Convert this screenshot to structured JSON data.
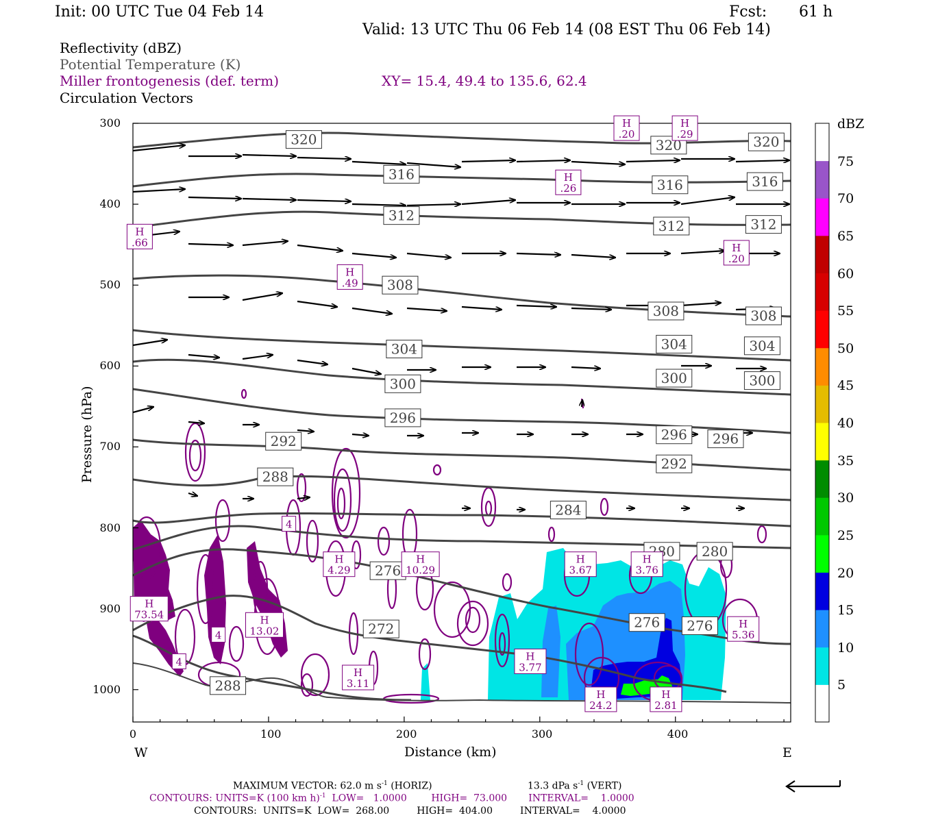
{
  "header": {
    "init": "Init: 00 UTC Tue 04 Feb 14",
    "fcst_label": "Fcst:",
    "fcst_value": "61 h",
    "valid": "Valid: 13 UTC Thu 06 Feb 14 (08 EST Thu 06 Feb 14)"
  },
  "legend": {
    "line1": "Reflectivity (dBZ)",
    "line2": "Potential Temperature (K)",
    "line3": "Miller frontogenesis (def. term)",
    "xy": "XY=  15.4, 49.4 to 135.6, 62.4",
    "line4": "Circulation Vectors"
  },
  "colorbar": {
    "title": "dBZ",
    "labels": [
      "5",
      "10",
      "15",
      "20",
      "25",
      "30",
      "35",
      "40",
      "45",
      "50",
      "55",
      "60",
      "65",
      "70",
      "75"
    ],
    "colors": [
      "#ffffff",
      "#00e5e5",
      "#1e90ff",
      "#0000e0",
      "#00ff00",
      "#00c800",
      "#008c00",
      "#ffff00",
      "#e5bc00",
      "#ff8c00",
      "#ff0000",
      "#d70000",
      "#c00000",
      "#ff00ff",
      "#9955c9",
      "#ffffff"
    ]
  },
  "footer": {
    "l1a": "MAXIMUM VECTOR:  62.0 m s",
    "l1b": "-1",
    "l1c": " (HORIZ)",
    "l1d": "13.3 dPa s",
    "l1e": "-1",
    "l1f": " (VERT)",
    "l2a": "CONTOURS:  UNITS=K (100 km h)",
    "l2b": "-1",
    "l2c": "  LOW=   1.0000        HIGH=  73.000       INTERVAL=    1.0000",
    "l3": "CONTOURS:  UNITS=K  LOW=  268.00         HIGH=  404.00         INTERVAL=    4.0000"
  },
  "chart_data": {
    "type": "cross-section",
    "xlabel": "Distance (km)",
    "ylabel": "Pressure (hPa)",
    "x_ticks": [
      0,
      100,
      200,
      300,
      400
    ],
    "y_ticks": [
      300,
      400,
      500,
      600,
      700,
      800,
      900,
      1000
    ],
    "xlim": [
      0,
      485
    ],
    "ylim": [
      1040,
      300
    ],
    "left_end_label": "W",
    "right_end_label": "E",
    "theta_labels": [
      {
        "v": "320",
        "x": 126,
        "p": 320
      },
      {
        "v": "320",
        "x": 395,
        "p": 327
      },
      {
        "v": "320",
        "x": 467,
        "p": 323
      },
      {
        "v": "316",
        "x": 198,
        "p": 363
      },
      {
        "v": "316",
        "x": 396,
        "p": 376
      },
      {
        "v": "316",
        "x": 466,
        "p": 372
      },
      {
        "v": "312",
        "x": 198,
        "p": 414
      },
      {
        "v": "312",
        "x": 397,
        "p": 427
      },
      {
        "v": "312",
        "x": 465,
        "p": 425
      },
      {
        "v": "308",
        "x": 197,
        "p": 500
      },
      {
        "v": "308",
        "x": 393,
        "p": 532
      },
      {
        "v": "308",
        "x": 465,
        "p": 538
      },
      {
        "v": "304",
        "x": 200,
        "p": 579
      },
      {
        "v": "304",
        "x": 399,
        "p": 573
      },
      {
        "v": "304",
        "x": 464,
        "p": 575
      },
      {
        "v": "300",
        "x": 199,
        "p": 622
      },
      {
        "v": "300",
        "x": 399,
        "p": 615
      },
      {
        "v": "300",
        "x": 464,
        "p": 618
      },
      {
        "v": "296",
        "x": 199,
        "p": 664
      },
      {
        "v": "296",
        "x": 399,
        "p": 685
      },
      {
        "v": "296",
        "x": 437,
        "p": 690
      },
      {
        "v": "292",
        "x": 111,
        "p": 693
      },
      {
        "v": "292",
        "x": 399,
        "p": 721
      },
      {
        "v": "288",
        "x": 105,
        "p": 737
      },
      {
        "v": "288",
        "x": 70,
        "p": 995
      },
      {
        "v": "284",
        "x": 321,
        "p": 778
      },
      {
        "v": "280",
        "x": 390,
        "p": 829
      },
      {
        "v": "280",
        "x": 429,
        "p": 829
      },
      {
        "v": "276",
        "x": 188,
        "p": 853
      },
      {
        "v": "276",
        "x": 379,
        "p": 917
      },
      {
        "v": "276",
        "x": 418,
        "p": 921
      },
      {
        "v": "272",
        "x": 183,
        "p": 925
      }
    ],
    "frontogenesis_maxima": [
      {
        "v": ".20",
        "x": 364,
        "p": 306
      },
      {
        "v": ".29",
        "x": 407,
        "p": 306
      },
      {
        "v": ".26",
        "x": 321,
        "p": 373
      },
      {
        "v": ".66",
        "x": 5,
        "p": 440
      },
      {
        "v": ".49",
        "x": 160,
        "p": 490
      },
      {
        "v": ".20",
        "x": 445,
        "p": 460
      },
      {
        "v": "4",
        "x": 115,
        "p": 795
      },
      {
        "v": "4.29",
        "x": 152,
        "p": 845
      },
      {
        "v": "10.29",
        "x": 212,
        "p": 845
      },
      {
        "v": "3.67",
        "x": 330,
        "p": 845
      },
      {
        "v": "3.76",
        "x": 379,
        "p": 845
      },
      {
        "v": "73.54",
        "x": 12,
        "p": 900
      },
      {
        "v": "4",
        "x": 63,
        "p": 932
      },
      {
        "v": "13.02",
        "x": 97,
        "p": 920
      },
      {
        "v": "4",
        "x": 34,
        "p": 965
      },
      {
        "v": "3.77",
        "x": 293,
        "p": 965
      },
      {
        "v": "3.11",
        "x": 166,
        "p": 985
      },
      {
        "v": "5.36",
        "x": 450,
        "p": 925
      },
      {
        "v": "24.2",
        "x": 345,
        "p": 1012
      },
      {
        "v": "2.81",
        "x": 393,
        "p": 1012
      }
    ]
  }
}
